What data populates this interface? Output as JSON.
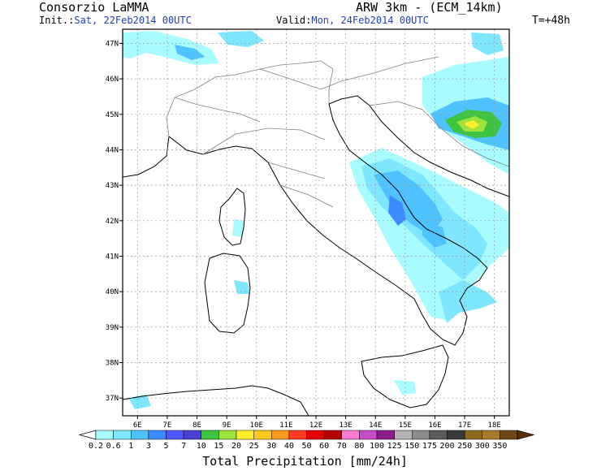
{
  "header": {
    "brand": "Consorzio LaMMA",
    "init_label": "Init.:",
    "init_value": "Sat, 22Feb2014 00UTC",
    "valid_label": "Valid:",
    "valid_value": "Mon, 24Feb2014 00UTC",
    "model": "ARW 3km - (ECM_14km)",
    "step": "T=+48h"
  },
  "map": {
    "lon_labels": [
      "6E",
      "7E",
      "8E",
      "9E",
      "10E",
      "11E",
      "12E",
      "13E",
      "14E",
      "15E",
      "16E",
      "17E",
      "18E"
    ],
    "lat_labels": [
      "47N",
      "46N",
      "45N",
      "44N",
      "43N",
      "42N",
      "41N",
      "40N",
      "39N",
      "38N",
      "37N"
    ],
    "gridlines": "dotted"
  },
  "colorbar": {
    "title": "Total Precipitation [mm/24h]",
    "levels": [
      "0.2",
      "0.6",
      "1",
      "3",
      "5",
      "7",
      "10",
      "15",
      "20",
      "25",
      "30",
      "40",
      "50",
      "60",
      "70",
      "80",
      "100",
      "125",
      "150",
      "175",
      "200",
      "250",
      "300",
      "350"
    ],
    "colors": [
      "#a8fbff",
      "#7ee6ff",
      "#4fc3ff",
      "#3c8cff",
      "#4f55ff",
      "#4b3fd6",
      "#3ec43e",
      "#9ee23c",
      "#ffef2a",
      "#ffc81e",
      "#ff9a1e",
      "#ff3a1e",
      "#e60000",
      "#b40000",
      "#ff7ad0",
      "#c64bc6",
      "#8c1e8c",
      "#b4b4b4",
      "#8c8c8c",
      "#5a5a5a",
      "#3a3a3a",
      "#8c6a1e",
      "#a87a2a",
      "#6e4614"
    ],
    "under_color": "#ffffff",
    "over_color": "#5a3008"
  }
}
